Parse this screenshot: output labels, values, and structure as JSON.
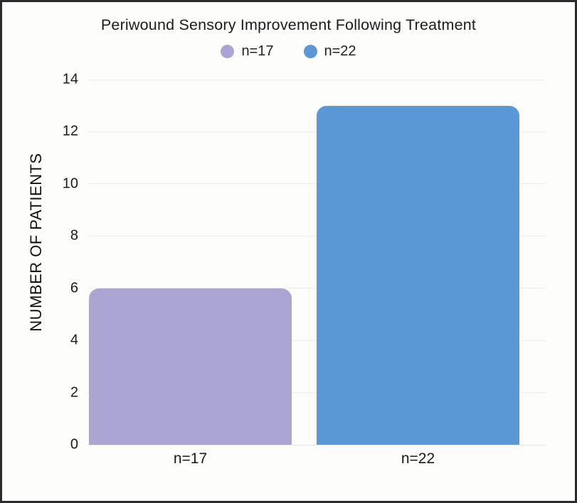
{
  "frame": {
    "background": "#fdfdfc",
    "border_color": "#2b2b2b"
  },
  "chart_data": {
    "type": "bar",
    "title": "Periwound Sensory Improvement Following Treatment",
    "xlabel": "",
    "ylabel": "NUMBER OF PATIENTS",
    "categories": [
      "n=17",
      "n=22"
    ],
    "values": [
      6,
      13
    ],
    "bar_colors": [
      "#aba5d4",
      "#5b98d6"
    ],
    "legend": [
      {
        "label": "n=17",
        "color": "#aba5d4"
      },
      {
        "label": "n=22",
        "color": "#5b98d6"
      }
    ],
    "legend_position": "top",
    "ylim": [
      0,
      14
    ],
    "yticks": [
      0,
      2,
      4,
      6,
      8,
      10,
      12,
      14
    ],
    "grid": true,
    "gridline_color": "#ececec",
    "text_color": "#1c1c1c"
  }
}
